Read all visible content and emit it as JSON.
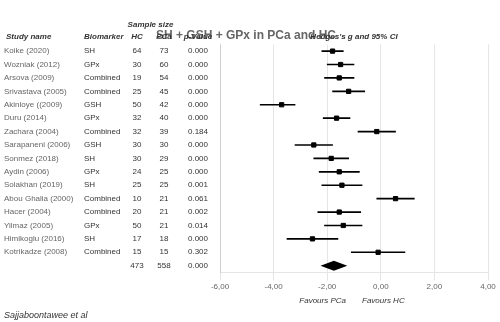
{
  "chart_data": {
    "type": "forest",
    "title": "SH + GSH + GPx in PCa and HC",
    "category_label": "Study name",
    "categories": [
      "Koike (2020)",
      "Wozniak (2012)",
      "Arsova (2009)",
      "Srivastava (2005)",
      "Akinloye ((2009)",
      "Duru (2014)",
      "Zachara (2004)",
      "Sarapaneni (2006)",
      "Sonmez (2018)",
      "Aydin (2006)",
      "Solakhan (2019)",
      "Abou Ghalia (2000)",
      "Hacer (2004)",
      "Yilmaz (2005)",
      "Himikoglu (2016)",
      "Kotrikadze (2008)"
    ],
    "columns": [
      {
        "name": "Biomarker",
        "values": [
          "SH",
          "GPx",
          "Combined",
          "Combined",
          "GSH",
          "GPx",
          "Combined",
          "GSH",
          "SH",
          "GPx",
          "SH",
          "Combined",
          "Combined",
          "GPx",
          "SH",
          "Combined"
        ]
      },
      {
        "name": "HC",
        "group": "Sample size",
        "values": [
          64,
          30,
          19,
          25,
          50,
          32,
          32,
          30,
          30,
          24,
          25,
          10,
          20,
          50,
          17,
          15
        ],
        "total": 473
      },
      {
        "name": "PCa",
        "group": "Sample size",
        "values": [
          73,
          60,
          54,
          45,
          42,
          40,
          39,
          30,
          29,
          25,
          25,
          21,
          21,
          21,
          18,
          15
        ],
        "total": 558
      },
      {
        "name": "p-Value",
        "values": [
          "0.000",
          "0.000",
          "0.000",
          "0.000",
          "0.000",
          "0.000",
          "0.184",
          "0.000",
          "0.000",
          "0.000",
          "0.001",
          "0.061",
          "0.002",
          "0.014",
          "0.000",
          "0.302"
        ],
        "total": "0.000"
      }
    ],
    "series": [
      {
        "name": "Hedges's g and 95% CI",
        "color": "#000000",
        "values": [
          -1.8,
          -1.5,
          -1.55,
          -1.2,
          -3.7,
          -1.65,
          -0.15,
          -2.5,
          -1.85,
          -1.55,
          -1.45,
          0.55,
          -1.55,
          -1.4,
          -2.55,
          -0.1
        ],
        "ci_low": [
          -2.2,
          -2.0,
          -2.1,
          -1.8,
          -4.5,
          -2.15,
          -0.85,
          -3.2,
          -2.5,
          -2.3,
          -2.2,
          -0.15,
          -2.35,
          -2.1,
          -3.5,
          -1.1
        ],
        "ci_high": [
          -1.4,
          -1.0,
          -1.0,
          -0.6,
          -3.2,
          -1.15,
          0.55,
          -1.8,
          -1.2,
          -0.8,
          -0.7,
          1.25,
          -0.75,
          -0.7,
          -1.6,
          0.9
        ],
        "total": {
          "value": -1.75,
          "ci_low": -2.25,
          "ci_high": -1.25
        }
      }
    ],
    "xlim": [
      -6.0,
      4.0
    ],
    "xticks": [
      {
        "value": -6.0,
        "label": "-6,00"
      },
      {
        "value": -4.0,
        "label": "-4,00"
      },
      {
        "value": -2.0,
        "label": "-2,00"
      },
      {
        "value": 0.0,
        "label": "0,00"
      },
      {
        "value": 2.0,
        "label": "2,00"
      },
      {
        "value": 4.0,
        "label": "4,00"
      }
    ],
    "xlabel_left": "Favours PCa",
    "xlabel_right": "Favours HC",
    "footer": "Sajjaboontawee et al",
    "grid": true
  }
}
